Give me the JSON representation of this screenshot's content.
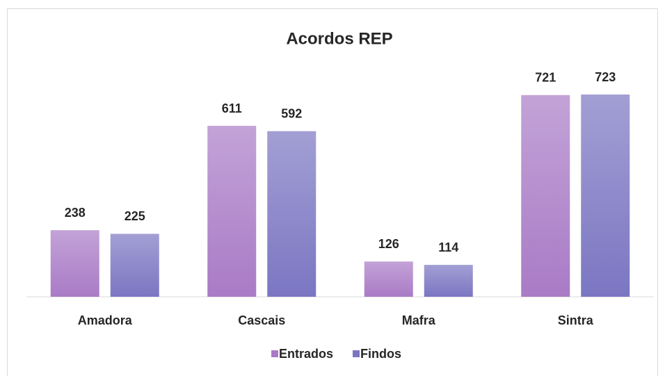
{
  "chart_data": {
    "type": "bar",
    "title": "Acordos REP",
    "categories": [
      "Amadora",
      "Cascais",
      "Mafra",
      "Sintra"
    ],
    "series": [
      {
        "name": "Entrados",
        "color": "#a97bc6",
        "values": [
          238,
          611,
          126,
          721
        ]
      },
      {
        "name": "Findos",
        "color": "#7b76c2",
        "values": [
          225,
          592,
          114,
          723
        ]
      }
    ],
    "legend": "bottom"
  }
}
